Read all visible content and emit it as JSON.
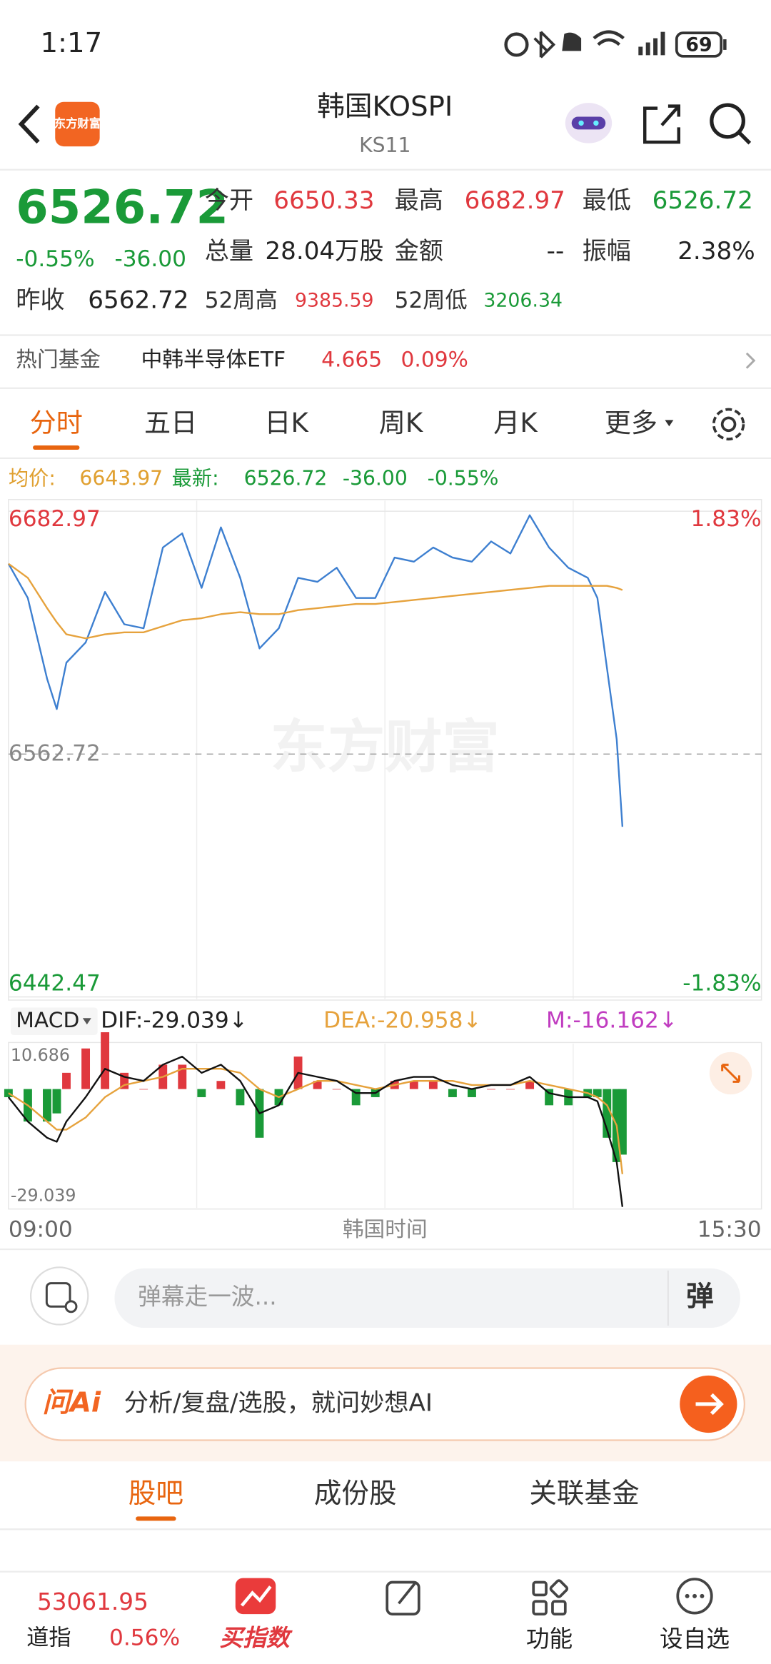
{
  "status_bar": {
    "time": "1:17",
    "battery": "69"
  },
  "header": {
    "logo": "东方财富",
    "title": "韩国KOSPI",
    "code": "KS11"
  },
  "quote": {
    "price": "6526.72",
    "change_pct": "-0.55%",
    "change": "-36.00",
    "stats": [
      {
        "label": "今开",
        "value": "6650.33"
      },
      {
        "label": "最高",
        "value": "6682.97"
      },
      {
        "label": "最低",
        "value": "6526.72"
      },
      {
        "label": "总量",
        "value": "28.04万股"
      },
      {
        "label": "金额",
        "value": "--"
      },
      {
        "label": "振幅",
        "value": "2.38%"
      },
      {
        "label": "昨收",
        "value": "6562.72"
      },
      {
        "label": "52周高",
        "value": "9385.59"
      },
      {
        "label": "52周低",
        "value": "3206.34"
      }
    ]
  },
  "hot_fund": {
    "label": "热门基金",
    "name": "中韩半导体ETF",
    "price": "4.665",
    "change": "0.09%"
  },
  "tabs": [
    "分时",
    "五日",
    "日K",
    "周K",
    "月K",
    "更多"
  ],
  "legend": {
    "avg_label": "均价:",
    "avg": "6643.97",
    "latest_label": "最新:",
    "latest": "6526.72",
    "change": "-36.00",
    "change_pct": "-0.55%"
  },
  "macd_header": {
    "name": "MACD",
    "dif": "DIF:-29.039↓",
    "dea": "DEA:-20.958↓",
    "m": "M:-16.162↓"
  },
  "chart_data": [
    {
      "type": "line",
      "watermark": "东方财富",
      "x_label": "韩国时间",
      "x": [
        "09:00",
        "09:10",
        "09:20",
        "09:25",
        "09:30",
        "09:40",
        "09:50",
        "10:00",
        "10:10",
        "10:20",
        "10:30",
        "10:40",
        "10:50",
        "11:00",
        "11:10",
        "11:20",
        "11:30",
        "11:40",
        "11:50",
        "12:00",
        "12:10",
        "12:20",
        "12:30",
        "12:40",
        "12:50",
        "13:00",
        "13:10",
        "13:20",
        "13:30",
        "13:40",
        "13:50",
        "14:00",
        "14:05",
        "14:10",
        "14:15",
        "14:18"
      ],
      "xlim": [
        "09:00",
        "15:30"
      ],
      "xticks": [
        "09:00",
        "15:30"
      ],
      "ylim": [
        6442.47,
        6682.97
      ],
      "yticks": [
        6442.47,
        6562.72,
        6682.97
      ],
      "ytick_colors": [
        "#1a9a38",
        "#888888",
        "#e0383e"
      ],
      "y2lim": [
        -1.83,
        1.83
      ],
      "y2ticks": [
        {
          "value": -1.83,
          "label": "-1.83%"
        },
        {
          "value": 1.83,
          "label": "1.83%"
        }
      ],
      "y2tick_colors": [
        "#1a9a38",
        "#e0383e"
      ],
      "series": [
        {
          "color": "#3d7fd0",
          "values": [
            6657,
            6640,
            6600,
            6585,
            6608,
            6618,
            6643,
            6627,
            6625,
            6665,
            6672,
            6645,
            6675,
            6650,
            6615,
            6625,
            6650,
            6648,
            6655,
            6640,
            6640,
            6660,
            6658,
            6665,
            6660,
            6658,
            6668,
            6662,
            6681,
            6665,
            6655,
            6650,
            6640,
            6605,
            6570,
            6526.72
          ]
        },
        {
          "color": "#e6a23c",
          "values": [
            6657,
            6650,
            6635,
            6628,
            6622,
            6620,
            6622,
            6623,
            6623,
            6626,
            6629,
            6630,
            6632,
            6633,
            6632,
            6632,
            6634,
            6635,
            6636,
            6637,
            6637,
            6638,
            6639,
            6640,
            6641,
            6642,
            6643,
            6644,
            6645,
            6646,
            6646,
            6646,
            6646,
            6646,
            6645,
            6643.97
          ]
        }
      ]
    },
    {
      "type": "macd",
      "x": [
        "09:00",
        "09:10",
        "09:20",
        "09:25",
        "09:30",
        "09:40",
        "09:50",
        "10:00",
        "10:10",
        "10:20",
        "10:30",
        "10:40",
        "10:50",
        "11:00",
        "11:10",
        "11:20",
        "11:30",
        "11:40",
        "11:50",
        "12:00",
        "12:10",
        "12:20",
        "12:30",
        "12:40",
        "12:50",
        "13:00",
        "13:10",
        "13:20",
        "13:30",
        "13:40",
        "13:50",
        "14:00",
        "14:05",
        "14:10",
        "14:15",
        "14:18"
      ],
      "xlim": [
        "09:00",
        "15:30"
      ],
      "ylim": [
        -29.039,
        10.686
      ],
      "yticks": [
        -29.039,
        10.686
      ],
      "series": [
        {
          "color": "#111111",
          "values": [
            -2,
            -8,
            -12,
            -13,
            -8,
            -2,
            5,
            3,
            2,
            6,
            8,
            4,
            6,
            2,
            -6,
            -4,
            4,
            3,
            2,
            -1,
            -1,
            2,
            3,
            3,
            1,
            0,
            1,
            1,
            3,
            -1,
            -2,
            -2,
            -3,
            -10,
            -18,
            -29.039
          ]
        },
        {
          "color": "#e6a23c",
          "values": [
            -1,
            -4,
            -8,
            -10,
            -10,
            -7,
            -2,
            1,
            2,
            3,
            5,
            5,
            5,
            4,
            0,
            -2,
            0,
            2,
            2,
            1,
            0,
            1,
            2,
            2,
            2,
            1,
            1,
            1,
            2,
            1,
            0,
            -1,
            -2,
            -4,
            -9,
            -20.958
          ]
        },
        {
          "color": "#e0383e",
          "negative_color": "#1a9a38",
          "values": [
            -2,
            -8,
            -8,
            -6,
            4,
            10,
            14,
            4,
            0,
            6,
            6,
            -2,
            2,
            -4,
            -12,
            -4,
            8,
            2,
            0,
            -4,
            -2,
            2,
            2,
            2,
            -2,
            -2,
            0,
            0,
            2,
            -4,
            -4,
            -2,
            -2,
            -12,
            -18,
            -16.162
          ]
        }
      ]
    }
  ],
  "input": {
    "placeholder": "弹幕走一波...",
    "button": "弹"
  },
  "ai": {
    "brand": "问Ai",
    "prompt": "分析/复盘/选股，就问妙想AI"
  },
  "sub_tabs": [
    "股吧",
    "成份股",
    "关联基金"
  ],
  "bottom_nav": {
    "index_value": "53061.95",
    "index_name": "道指",
    "index_change": "0.56%",
    "items": [
      "买指数",
      "功能",
      "设自选"
    ]
  }
}
